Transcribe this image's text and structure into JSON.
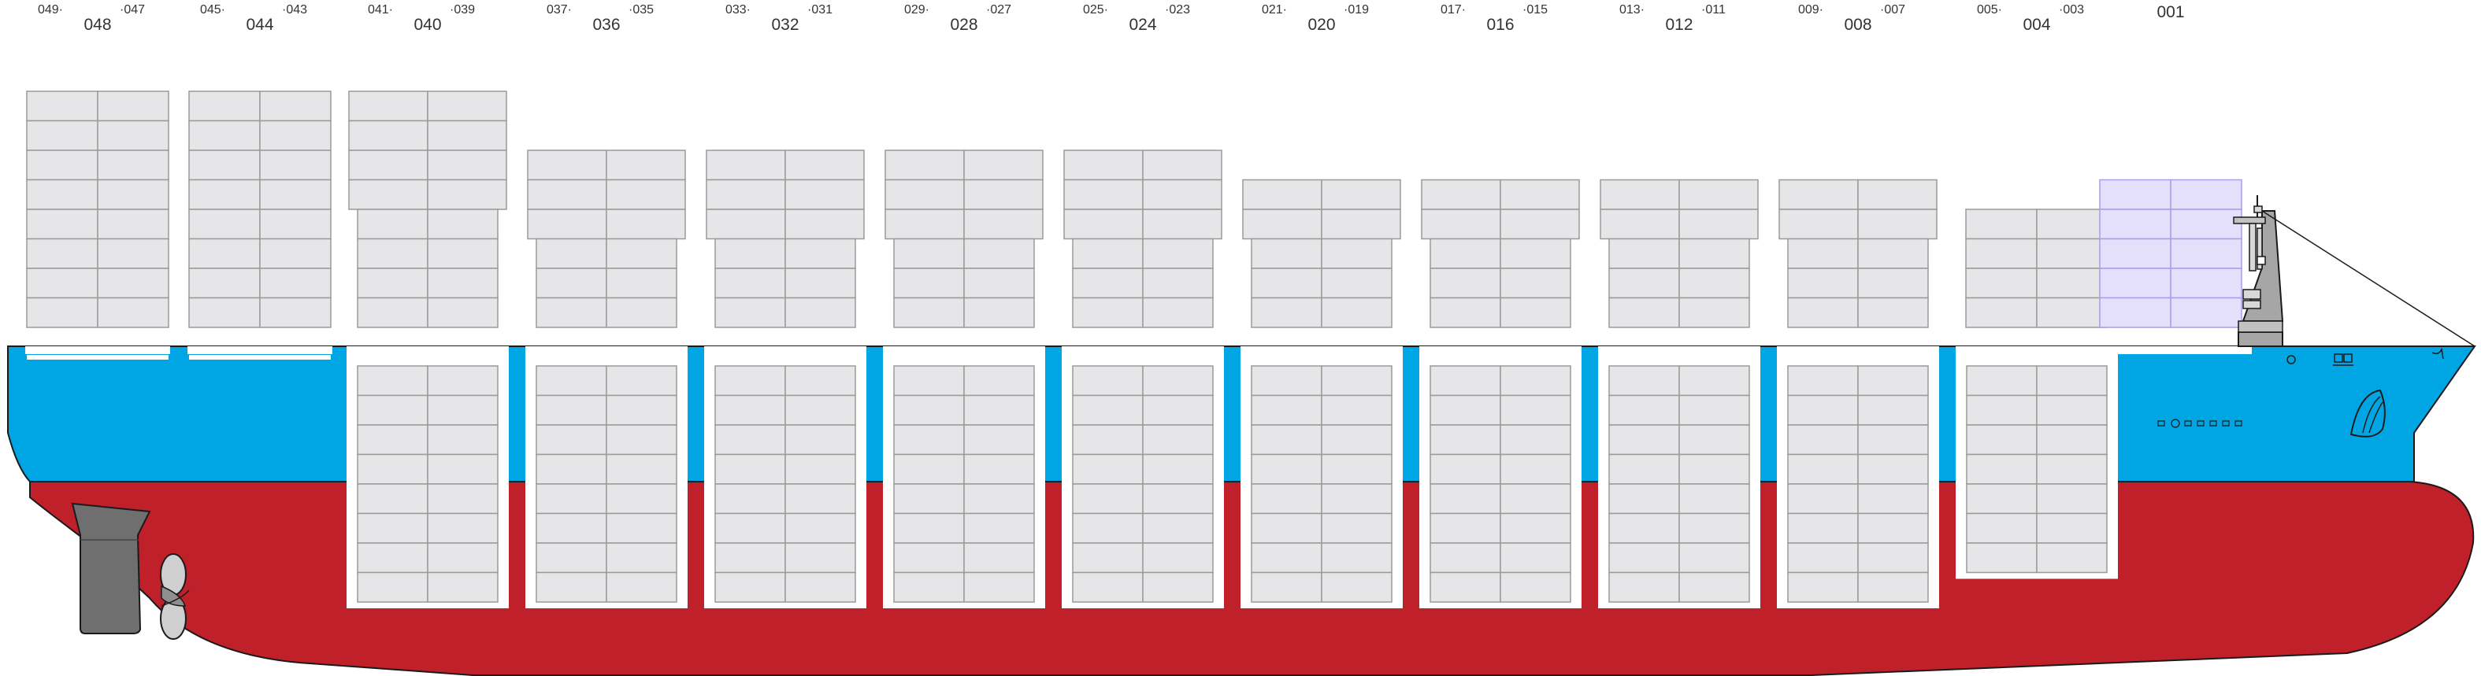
{
  "diagram": {
    "bays": [
      {
        "id": "bay-48",
        "label": "048",
        "fore_label": "049·",
        "aft_label": "·047"
      },
      {
        "id": "bay-44",
        "label": "044",
        "fore_label": "045·",
        "aft_label": "·043"
      },
      {
        "id": "bay-40",
        "label": "040",
        "fore_label": "041·",
        "aft_label": "·039"
      },
      {
        "id": "bay-36",
        "label": "036",
        "fore_label": "037·",
        "aft_label": "·035"
      },
      {
        "id": "bay-32",
        "label": "032",
        "fore_label": "033·",
        "aft_label": "·031"
      },
      {
        "id": "bay-28",
        "label": "028",
        "fore_label": "029·",
        "aft_label": "·027"
      },
      {
        "id": "bay-24",
        "label": "024",
        "fore_label": "025·",
        "aft_label": "·023"
      },
      {
        "id": "bay-20",
        "label": "020",
        "fore_label": "021·",
        "aft_label": "·019"
      },
      {
        "id": "bay-16",
        "label": "016",
        "fore_label": "017·",
        "aft_label": "·015"
      },
      {
        "id": "bay-12",
        "label": "012",
        "fore_label": "013·",
        "aft_label": "·011"
      },
      {
        "id": "bay-08",
        "label": "008",
        "fore_label": "009·",
        "aft_label": "·007"
      },
      {
        "id": "bay-04",
        "label": "004",
        "fore_label": "005·",
        "aft_label": "·003"
      },
      {
        "id": "bay-01",
        "label": "001",
        "fore_label": "",
        "aft_label": ""
      }
    ],
    "colors": {
      "hull_upper": "#00a6e4",
      "hull_lower": "#bf202a",
      "container_fill": "#e6e6e8",
      "container_stroke": "#9a9a9a",
      "bay001_fill": "#e4e0fb",
      "bay001_stroke": "#a79ee8",
      "hatch_frame": "#ffffff",
      "rudder": "#6f6f6f",
      "propeller": "#cfcfcf",
      "outline": "#1a1a1a"
    },
    "icons": [
      "rudder-icon",
      "propeller-icon",
      "bridge-tower-icon",
      "mast-icon",
      "bulb-bow-icon",
      "anchor-icon"
    ]
  }
}
